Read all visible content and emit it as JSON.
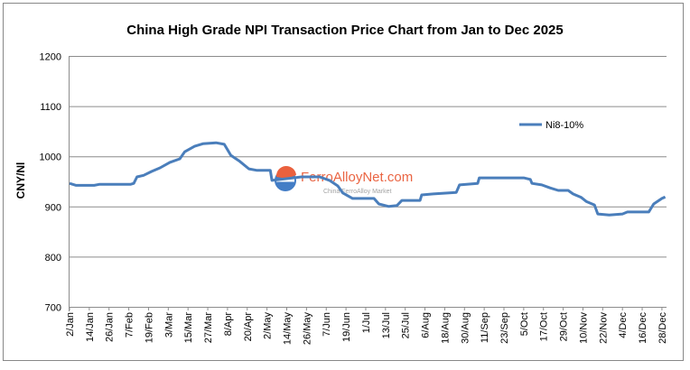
{
  "chart_data": {
    "type": "line",
    "title": "China High Grade NPI Transaction Price Chart from Jan to Dec 2025",
    "ylabel": "CNY/Nl",
    "xlabel": "",
    "ylim": [
      700,
      1200
    ],
    "yticks": [
      700,
      800,
      900,
      1000,
      1100,
      1200
    ],
    "grid": true,
    "legend_position": "right",
    "xtick_labels": [
      "2/Jan",
      "14/Jan",
      "26/Jan",
      "7/Feb",
      "19/Feb",
      "3/Mar",
      "15/Mar",
      "27/Mar",
      "8/Apr",
      "20/Apr",
      "2/May",
      "14/May",
      "26/May",
      "7/Jun",
      "19/Jun",
      "1/Jul",
      "13/Jul",
      "25/Jul",
      "6/Aug",
      "18/Aug",
      "30/Aug",
      "11/Sep",
      "23/Sep",
      "5/Oct",
      "17/Oct",
      "29/Oct",
      "10/Nov",
      "22/Nov",
      "4/Dec",
      "16/Dec",
      "28/Dec"
    ],
    "series": [
      {
        "name": "Ni8-10%",
        "color": "#4a7ebb",
        "x": [
          "2025-01-02",
          "2025-01-06",
          "2025-01-17",
          "2025-01-20",
          "2025-02-08",
          "2025-02-10",
          "2025-02-12",
          "2025-02-16",
          "2025-02-21",
          "2025-02-26",
          "2025-03-04",
          "2025-03-10",
          "2025-03-13",
          "2025-03-19",
          "2025-03-24",
          "2025-04-01",
          "2025-04-06",
          "2025-04-10",
          "2025-04-15",
          "2025-04-21",
          "2025-04-26",
          "2025-05-04",
          "2025-05-05",
          "2025-05-23",
          "2025-06-03",
          "2025-06-09",
          "2025-06-14",
          "2025-06-17",
          "2025-06-23",
          "2025-07-06",
          "2025-07-09",
          "2025-07-15",
          "2025-07-20",
          "2025-07-23",
          "2025-08-03",
          "2025-08-04",
          "2025-08-11",
          "2025-08-25",
          "2025-08-27",
          "2025-09-07",
          "2025-09-08",
          "2025-10-05",
          "2025-10-09",
          "2025-10-10",
          "2025-10-16",
          "2025-10-21",
          "2025-10-26",
          "2025-11-01",
          "2025-11-04",
          "2025-11-09",
          "2025-11-12",
          "2025-11-17",
          "2025-11-19",
          "2025-11-26",
          "2025-12-04",
          "2025-12-07",
          "2025-12-20",
          "2025-12-23",
          "2025-12-28",
          "2025-12-30"
        ],
        "values": [
          946,
          942,
          942,
          944,
          944,
          946,
          959,
          962,
          970,
          977,
          988,
          995,
          1009,
          1020,
          1025,
          1027,
          1024,
          1002,
          991,
          975,
          972,
          972,
          952,
          959,
          959,
          952,
          941,
          927,
          916,
          916,
          905,
          900,
          902,
          912,
          912,
          923,
          925,
          928,
          943,
          946,
          957,
          957,
          954,
          946,
          943,
          937,
          932,
          932,
          925,
          918,
          910,
          903,
          885,
          883,
          885,
          889,
          889,
          905,
          916,
          919
        ]
      }
    ]
  },
  "watermark": {
    "brand": "FerroAlloyNet.com",
    "tagline": "China FerroAlloy Market"
  }
}
